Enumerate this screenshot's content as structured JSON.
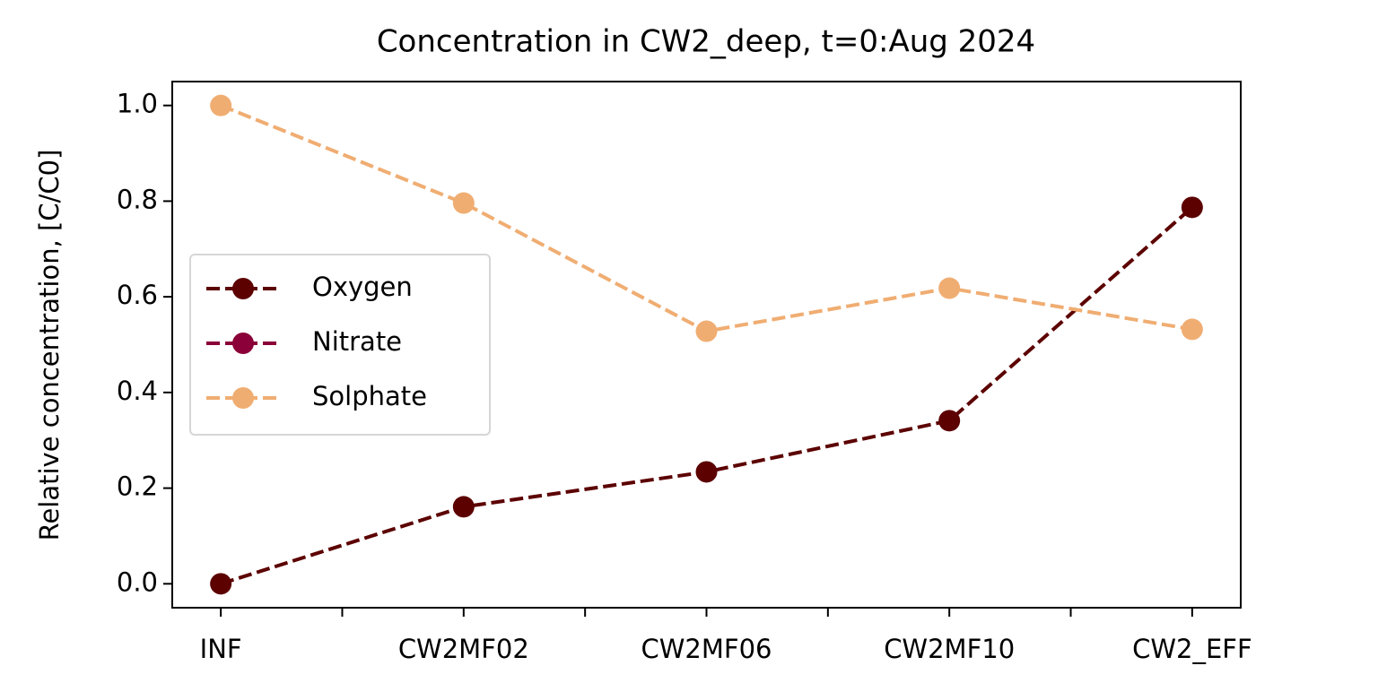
{
  "chart_data": {
    "type": "line",
    "title": "Concentration in CW2_deep, t=0:Aug 2024",
    "ylabel": "Relative concentration, [C/C0]",
    "x": [
      0,
      1,
      2,
      3,
      4
    ],
    "xlim": [
      -0.2,
      4.2
    ],
    "xticks": [
      {
        "value": 0,
        "label": "INF"
      },
      {
        "value": 1,
        "label": "CW2MF02"
      },
      {
        "value": 2,
        "label": "CW2MF06"
      },
      {
        "value": 3,
        "label": "CW2MF10"
      },
      {
        "value": 4,
        "label": "CW2_EFF"
      }
    ],
    "xminorticks": [
      0.5,
      1.5,
      2.5,
      3.5
    ],
    "ylim": [
      -0.05,
      1.05
    ],
    "yticks": [
      {
        "value": 0,
        "label": "0.0"
      },
      0.2,
      0.4,
      0.6,
      0.8,
      {
        "value": 1,
        "label": "1.0"
      }
    ],
    "legend": "center left",
    "series": [
      {
        "name": "Oxygen",
        "color": "#5c0000",
        "values": [
          0.0,
          0.161,
          0.234,
          0.341,
          0.787
        ]
      },
      {
        "name": "Nitrate",
        "color": "#8b0038",
        "values": [
          null,
          null,
          null,
          null,
          null
        ]
      },
      {
        "name": "Solphate",
        "color": "#f0ad72",
        "values": [
          1.0,
          0.796,
          0.528,
          0.618,
          0.532
        ]
      }
    ]
  }
}
